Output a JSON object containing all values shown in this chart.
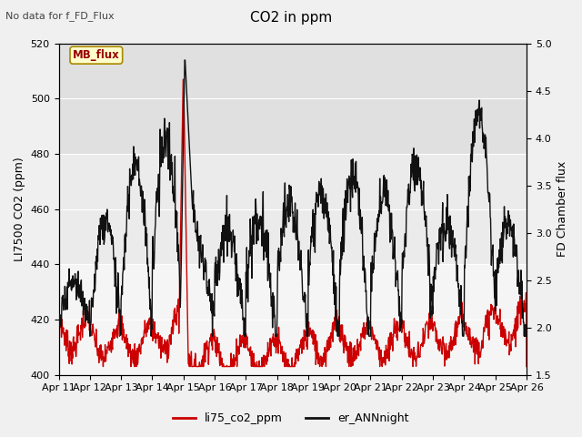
{
  "title": "CO2 in ppm",
  "top_left_text": "No data for f_FD_Flux",
  "ylabel_left": "LI7500 CO2 (ppm)",
  "ylabel_right": "FD Chamber flux",
  "legend_labels": [
    "li75_co2_ppm",
    "er_ANNnight"
  ],
  "legend_colors": [
    "#cc0000",
    "#111111"
  ],
  "ylim_left": [
    400,
    520
  ],
  "ylim_right": [
    1.5,
    5.0
  ],
  "yticks_left": [
    400,
    420,
    440,
    460,
    480,
    500,
    520
  ],
  "yticks_right": [
    1.5,
    2.0,
    2.5,
    3.0,
    3.5,
    4.0,
    4.5,
    5.0
  ],
  "xticklabels": [
    "Apr 11",
    "Apr 12",
    "Apr 13",
    "Apr 14",
    "Apr 15",
    "Apr 16",
    "Apr 17",
    "Apr 18",
    "Apr 19",
    "Apr 20",
    "Apr 21",
    "Apr 22",
    "Apr 23",
    "Apr 24",
    "Apr 25",
    "Apr 26"
  ],
  "fig_bg_color": "#f0f0f0",
  "plot_bg_color": "#f5f5f5",
  "band1_color": "#e0e0e0",
  "band2_color": "#ebebeb",
  "mb_flux_label": "MB_flux",
  "mb_flux_box_color": "#ffffcc",
  "mb_flux_text_color": "#990000",
  "grid_color": "#ffffff",
  "n_days": 15,
  "pts_per_day": 80
}
